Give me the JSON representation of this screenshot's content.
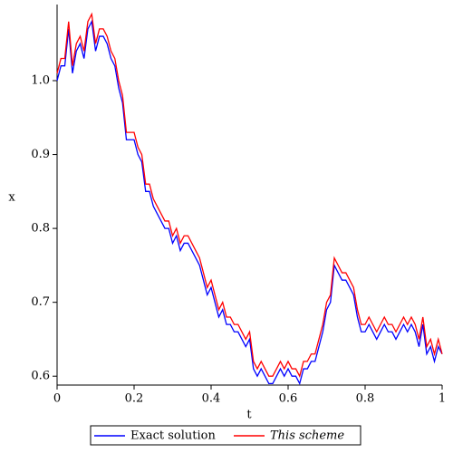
{
  "chart_data": {
    "type": "line",
    "xlabel": "t",
    "ylabel": "x",
    "x": [
      0,
      0.01,
      0.02,
      0.03,
      0.04,
      0.05,
      0.06,
      0.07,
      0.08,
      0.09,
      0.1,
      0.11,
      0.12,
      0.13,
      0.14,
      0.15,
      0.16,
      0.17,
      0.18,
      0.19,
      0.2,
      0.21,
      0.22,
      0.23,
      0.24,
      0.25,
      0.26,
      0.27,
      0.28,
      0.29,
      0.3,
      0.31,
      0.32,
      0.33,
      0.34,
      0.35,
      0.36,
      0.37,
      0.38,
      0.39,
      0.4,
      0.41,
      0.42,
      0.43,
      0.44,
      0.45,
      0.46,
      0.47,
      0.48,
      0.49,
      0.5,
      0.51,
      0.52,
      0.53,
      0.54,
      0.55,
      0.56,
      0.57,
      0.58,
      0.59,
      0.6,
      0.61,
      0.62,
      0.63,
      0.64,
      0.65,
      0.66,
      0.67,
      0.68,
      0.69,
      0.7,
      0.71,
      0.72,
      0.73,
      0.74,
      0.75,
      0.76,
      0.77,
      0.78,
      0.79,
      0.8,
      0.81,
      0.82,
      0.83,
      0.84,
      0.85,
      0.86,
      0.87,
      0.88,
      0.89,
      0.9,
      0.91,
      0.92,
      0.93,
      0.94,
      0.95,
      0.96,
      0.97,
      0.98,
      0.99,
      1
    ],
    "series": [
      {
        "name": "Exact solution",
        "color": "#0000ff",
        "values": [
          1.0,
          1.02,
          1.02,
          1.07,
          1.01,
          1.04,
          1.05,
          1.03,
          1.07,
          1.08,
          1.04,
          1.06,
          1.06,
          1.05,
          1.03,
          1.02,
          0.99,
          0.97,
          0.92,
          0.92,
          0.92,
          0.9,
          0.89,
          0.85,
          0.85,
          0.83,
          0.82,
          0.81,
          0.8,
          0.8,
          0.78,
          0.79,
          0.77,
          0.78,
          0.78,
          0.77,
          0.76,
          0.75,
          0.73,
          0.71,
          0.72,
          0.7,
          0.68,
          0.69,
          0.67,
          0.67,
          0.66,
          0.66,
          0.65,
          0.64,
          0.65,
          0.61,
          0.6,
          0.61,
          0.6,
          0.59,
          0.59,
          0.6,
          0.61,
          0.6,
          0.61,
          0.6,
          0.6,
          0.59,
          0.61,
          0.61,
          0.62,
          0.62,
          0.64,
          0.66,
          0.69,
          0.7,
          0.75,
          0.74,
          0.73,
          0.73,
          0.72,
          0.71,
          0.68,
          0.66,
          0.66,
          0.67,
          0.66,
          0.65,
          0.66,
          0.67,
          0.66,
          0.66,
          0.65,
          0.66,
          0.67,
          0.66,
          0.67,
          0.66,
          0.64,
          0.67,
          0.63,
          0.64,
          0.62,
          0.64,
          0.63
        ]
      },
      {
        "name": "This scheme",
        "color": "#ff0000",
        "values": [
          1.01,
          1.03,
          1.03,
          1.08,
          1.02,
          1.05,
          1.06,
          1.04,
          1.08,
          1.09,
          1.05,
          1.07,
          1.07,
          1.06,
          1.04,
          1.03,
          1.0,
          0.98,
          0.93,
          0.93,
          0.93,
          0.91,
          0.9,
          0.86,
          0.86,
          0.84,
          0.83,
          0.82,
          0.81,
          0.81,
          0.79,
          0.8,
          0.78,
          0.79,
          0.79,
          0.78,
          0.77,
          0.76,
          0.74,
          0.72,
          0.73,
          0.71,
          0.69,
          0.7,
          0.68,
          0.68,
          0.67,
          0.67,
          0.66,
          0.65,
          0.66,
          0.62,
          0.61,
          0.62,
          0.61,
          0.6,
          0.6,
          0.61,
          0.62,
          0.61,
          0.62,
          0.61,
          0.61,
          0.6,
          0.62,
          0.62,
          0.63,
          0.63,
          0.65,
          0.67,
          0.7,
          0.71,
          0.76,
          0.75,
          0.74,
          0.74,
          0.73,
          0.72,
          0.69,
          0.67,
          0.67,
          0.68,
          0.67,
          0.66,
          0.67,
          0.68,
          0.67,
          0.67,
          0.66,
          0.67,
          0.68,
          0.67,
          0.68,
          0.67,
          0.65,
          0.68,
          0.64,
          0.65,
          0.63,
          0.65,
          0.63
        ]
      }
    ],
    "xlim": [
      0,
      1
    ],
    "ylim": [
      0.588,
      1.103
    ],
    "xticks": [
      0,
      0.2,
      0.4,
      0.6,
      0.8,
      1
    ],
    "yticks": [
      0.6,
      0.7,
      0.8,
      0.9,
      {
        "value": 1,
        "label": "1.0"
      }
    ],
    "legend": "bottom"
  }
}
